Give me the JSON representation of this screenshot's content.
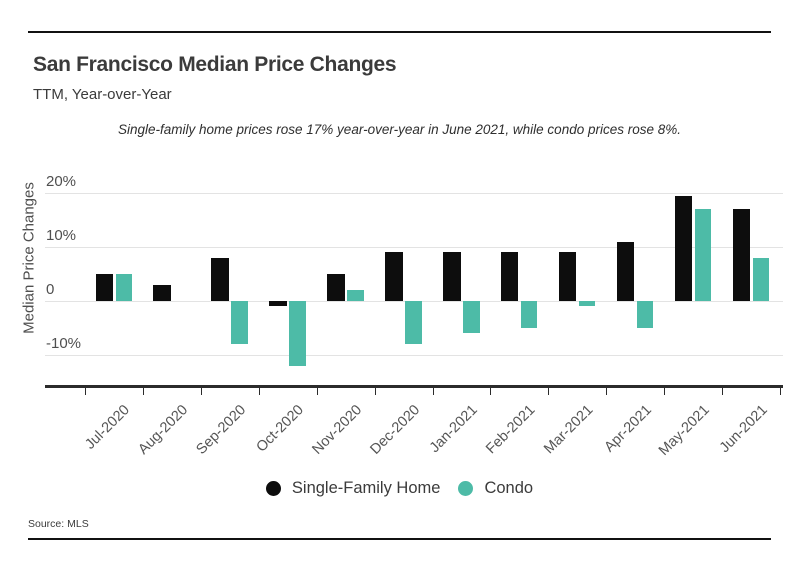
{
  "header": {
    "title": "San Francisco Median Price Changes",
    "subtitle": "TTM, Year-over-Year"
  },
  "annotation": "Single-family home prices rose 17% year-over-year in June 2021, while condo prices rose 8%.",
  "source": "Source: MLS",
  "chart_data": {
    "type": "bar",
    "title": "San Francisco Median Price Changes",
    "subtitle": "TTM, Year-over-Year",
    "categories": [
      "Jul-2020",
      "Aug-2020",
      "Sep-2020",
      "Oct-2020",
      "Nov-2020",
      "Dec-2020",
      "Jan-2021",
      "Feb-2021",
      "Mar-2021",
      "Apr-2021",
      "May-2021",
      "Jun-2021"
    ],
    "series": [
      {
        "name": "Single-Family Home",
        "color": "#0d0d0d",
        "values": [
          5,
          3,
          8,
          -1,
          5,
          9,
          9,
          9,
          9,
          11,
          19.5,
          17
        ]
      },
      {
        "name": "Condo",
        "color": "#4dbba7",
        "values": [
          5,
          0,
          -8,
          -12,
          2,
          -8,
          -6,
          -5,
          -1,
          -5,
          17,
          8
        ]
      }
    ],
    "xlabel": "",
    "ylabel": "Median Price Changes",
    "yticks": [
      {
        "value": 20,
        "label": "20%"
      },
      {
        "value": 10,
        "label": "10%"
      },
      {
        "value": 0,
        "label": "0"
      },
      {
        "value": -10,
        "label": "-10%"
      }
    ],
    "ylim": [
      -16,
      22
    ],
    "grid": "horizontal",
    "legend_position": "bottom",
    "gridline_color": "#e3e3e3",
    "axis_color": "#2b2b2b"
  }
}
